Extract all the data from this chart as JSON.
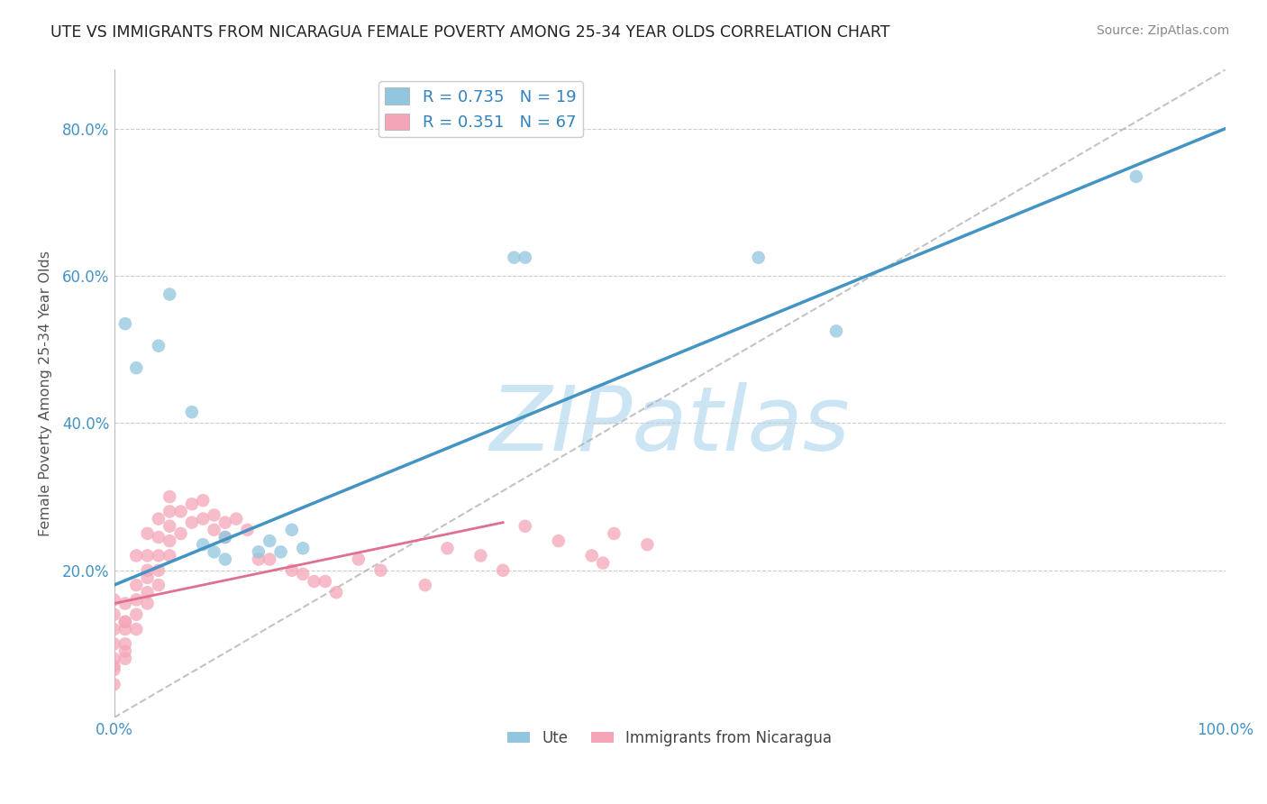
{
  "title": "UTE VS IMMIGRANTS FROM NICARAGUA FEMALE POVERTY AMONG 25-34 YEAR OLDS CORRELATION CHART",
  "source_text": "Source: ZipAtlas.com",
  "ylabel": "Female Poverty Among 25-34 Year Olds",
  "xlim": [
    0.0,
    1.0
  ],
  "ylim": [
    0.0,
    0.88
  ],
  "blue_line_x": [
    0.0,
    1.0
  ],
  "blue_line_y": [
    0.18,
    0.8
  ],
  "pink_line_x": [
    0.0,
    0.35
  ],
  "pink_line_y": [
    0.155,
    0.265
  ],
  "diag_line_x": [
    0.0,
    1.0
  ],
  "diag_line_y": [
    0.0,
    0.88
  ],
  "legend_blue_label": "R = 0.735   N = 19",
  "legend_pink_label": "R = 0.351   N = 67",
  "watermark": "ZIPatlas",
  "legend_ute": "Ute",
  "legend_nicaragua": "Immigrants from Nicaragua",
  "blue_color": "#92c5de",
  "pink_color": "#f4a6b8",
  "blue_line_color": "#4393c3",
  "pink_line_color": "#e07090",
  "legend_R_color": "#3182bd",
  "axis_color": "#4393c3",
  "grid_color": "#cccccc",
  "watermark_color": "#cce5f5",
  "ute_points": [
    [
      0.01,
      0.535
    ],
    [
      0.02,
      0.475
    ],
    [
      0.04,
      0.505
    ],
    [
      0.05,
      0.575
    ],
    [
      0.07,
      0.415
    ],
    [
      0.08,
      0.235
    ],
    [
      0.09,
      0.225
    ],
    [
      0.1,
      0.215
    ],
    [
      0.1,
      0.245
    ],
    [
      0.13,
      0.225
    ],
    [
      0.14,
      0.24
    ],
    [
      0.15,
      0.225
    ],
    [
      0.16,
      0.255
    ],
    [
      0.17,
      0.23
    ],
    [
      0.36,
      0.625
    ],
    [
      0.37,
      0.625
    ],
    [
      0.58,
      0.625
    ],
    [
      0.65,
      0.525
    ],
    [
      0.92,
      0.735
    ]
  ],
  "nicaragua_points": [
    [
      0.0,
      0.14
    ],
    [
      0.0,
      0.12
    ],
    [
      0.0,
      0.1
    ],
    [
      0.0,
      0.08
    ],
    [
      0.0,
      0.16
    ],
    [
      0.0,
      0.07
    ],
    [
      0.0,
      0.045
    ],
    [
      0.0,
      0.065
    ],
    [
      0.01,
      0.155
    ],
    [
      0.01,
      0.13
    ],
    [
      0.01,
      0.12
    ],
    [
      0.01,
      0.09
    ],
    [
      0.01,
      0.1
    ],
    [
      0.01,
      0.08
    ],
    [
      0.01,
      0.13
    ],
    [
      0.02,
      0.22
    ],
    [
      0.02,
      0.18
    ],
    [
      0.02,
      0.16
    ],
    [
      0.02,
      0.14
    ],
    [
      0.02,
      0.12
    ],
    [
      0.03,
      0.25
    ],
    [
      0.03,
      0.22
    ],
    [
      0.03,
      0.2
    ],
    [
      0.03,
      0.19
    ],
    [
      0.03,
      0.17
    ],
    [
      0.03,
      0.155
    ],
    [
      0.04,
      0.27
    ],
    [
      0.04,
      0.245
    ],
    [
      0.04,
      0.22
    ],
    [
      0.04,
      0.2
    ],
    [
      0.04,
      0.18
    ],
    [
      0.05,
      0.3
    ],
    [
      0.05,
      0.28
    ],
    [
      0.05,
      0.26
    ],
    [
      0.05,
      0.24
    ],
    [
      0.05,
      0.22
    ],
    [
      0.06,
      0.28
    ],
    [
      0.06,
      0.25
    ],
    [
      0.07,
      0.29
    ],
    [
      0.07,
      0.265
    ],
    [
      0.08,
      0.295
    ],
    [
      0.08,
      0.27
    ],
    [
      0.09,
      0.275
    ],
    [
      0.09,
      0.255
    ],
    [
      0.1,
      0.265
    ],
    [
      0.1,
      0.245
    ],
    [
      0.11,
      0.27
    ],
    [
      0.12,
      0.255
    ],
    [
      0.13,
      0.215
    ],
    [
      0.14,
      0.215
    ],
    [
      0.16,
      0.2
    ],
    [
      0.17,
      0.195
    ],
    [
      0.18,
      0.185
    ],
    [
      0.19,
      0.185
    ],
    [
      0.2,
      0.17
    ],
    [
      0.22,
      0.215
    ],
    [
      0.24,
      0.2
    ],
    [
      0.28,
      0.18
    ],
    [
      0.3,
      0.23
    ],
    [
      0.33,
      0.22
    ],
    [
      0.35,
      0.2
    ],
    [
      0.37,
      0.26
    ],
    [
      0.4,
      0.24
    ],
    [
      0.43,
      0.22
    ],
    [
      0.44,
      0.21
    ],
    [
      0.45,
      0.25
    ],
    [
      0.48,
      0.235
    ]
  ],
  "ytick_vals": [
    0.2,
    0.4,
    0.6,
    0.8
  ],
  "ytick_labels": [
    "20.0%",
    "40.0%",
    "60.0%",
    "80.0%"
  ],
  "xtick_vals": [
    0.0,
    1.0
  ],
  "xtick_labels": [
    "0.0%",
    "100.0%"
  ]
}
